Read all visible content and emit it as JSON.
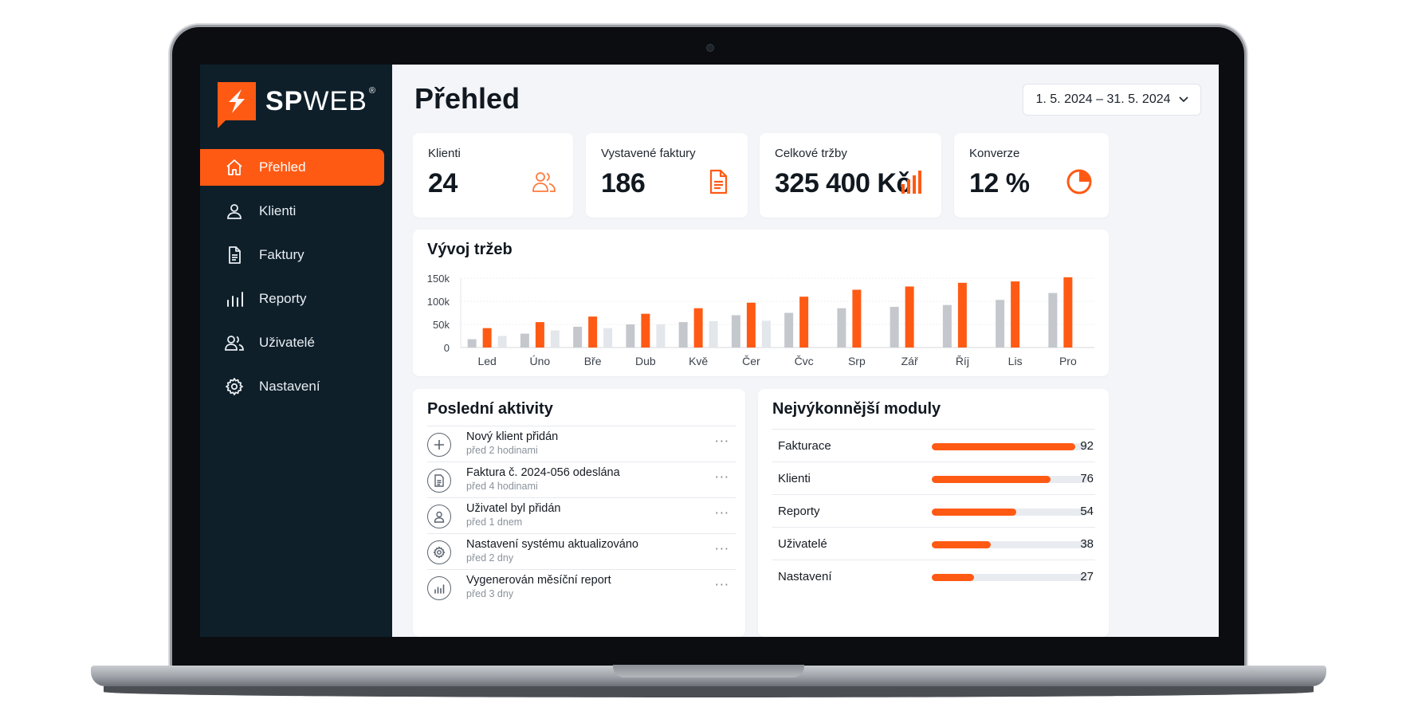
{
  "brand": {
    "name_bold": "SP",
    "name_thin": "WEB",
    "reg": "®"
  },
  "colors": {
    "accent": "#ff5a14",
    "sidebar": "#0e1f2a",
    "bar_prev": "#c4c8cd",
    "bar_light": "#e3e6ea"
  },
  "sidebar": {
    "items": [
      {
        "label": "Přehled",
        "icon": "home-icon",
        "active": true
      },
      {
        "label": "Klienti",
        "icon": "user-icon"
      },
      {
        "label": "Faktury",
        "icon": "document-icon"
      },
      {
        "label": "Reporty",
        "icon": "bar-chart-icon"
      },
      {
        "label": "Uživatelé",
        "icon": "users-icon"
      },
      {
        "label": "Nastavení",
        "icon": "gear-icon"
      }
    ]
  },
  "header": {
    "title": "Přehled",
    "date_range": "1. 5. 2024 – 31. 5. 2024"
  },
  "kpis": [
    {
      "label": "Klienti",
      "value": "24",
      "icon": "users-icon"
    },
    {
      "label": "Vystavené faktury",
      "value": "186",
      "icon": "document-icon"
    },
    {
      "label": "Celkové tržby",
      "value": "325 400 Kč",
      "icon": "bar-chart-icon"
    },
    {
      "label": "Konverze",
      "value": "12 %",
      "icon": "pie-chart-icon"
    }
  ],
  "revenue": {
    "title": "Vývoj tržeb",
    "chart_data": {
      "type": "bar",
      "title": "Vývoj tržeb",
      "categories": [
        "Led",
        "Úno",
        "Bře",
        "Dub",
        "Kvě",
        "Čer",
        "Čvc",
        "Srp",
        "Zář",
        "Říj",
        "Lis",
        "Pro"
      ],
      "yticks": [
        "0",
        "50k",
        "100k",
        "150k"
      ],
      "ylim": [
        0,
        150000
      ],
      "grid": true,
      "series": [
        {
          "values": [
            18000,
            30000,
            45000,
            50000,
            55000,
            70000,
            75000,
            85000,
            88000,
            92000,
            103000,
            118000
          ]
        },
        {
          "values": [
            42000,
            55000,
            67000,
            73000,
            85000,
            97000,
            110000,
            125000,
            132000,
            140000,
            143000,
            152000
          ]
        },
        {
          "values": [
            25000,
            37000,
            42000,
            50000,
            57000,
            58000,
            null,
            null,
            null,
            null,
            null,
            null
          ]
        }
      ]
    }
  },
  "activities": {
    "title": "Poslední aktivity",
    "items": [
      {
        "title": "Nový klient přidán",
        "time": "před 2 hodinami",
        "icon": "plus-icon"
      },
      {
        "title": "Faktura č. 2024-056 odeslána",
        "time": "před 4 hodinami",
        "icon": "document-icon"
      },
      {
        "title": "Uživatel byl přidán",
        "time": "před 1 dnem",
        "icon": "user-icon"
      },
      {
        "title": "Nastavení systému aktualizováno",
        "time": "před 2 dny",
        "icon": "gear-icon"
      },
      {
        "title": "Vygenerován měsíční report",
        "time": "před 3 dny",
        "icon": "bar-chart-icon"
      }
    ],
    "more": "···"
  },
  "modules": {
    "title": "Nejvýkonnější moduly",
    "items": [
      {
        "label": "Fakturace",
        "value": 92
      },
      {
        "label": "Klienti",
        "value": 76
      },
      {
        "label": "Reporty",
        "value": 54
      },
      {
        "label": "Uživatelé",
        "value": 38
      },
      {
        "label": "Nastavení",
        "value": 27
      }
    ]
  }
}
